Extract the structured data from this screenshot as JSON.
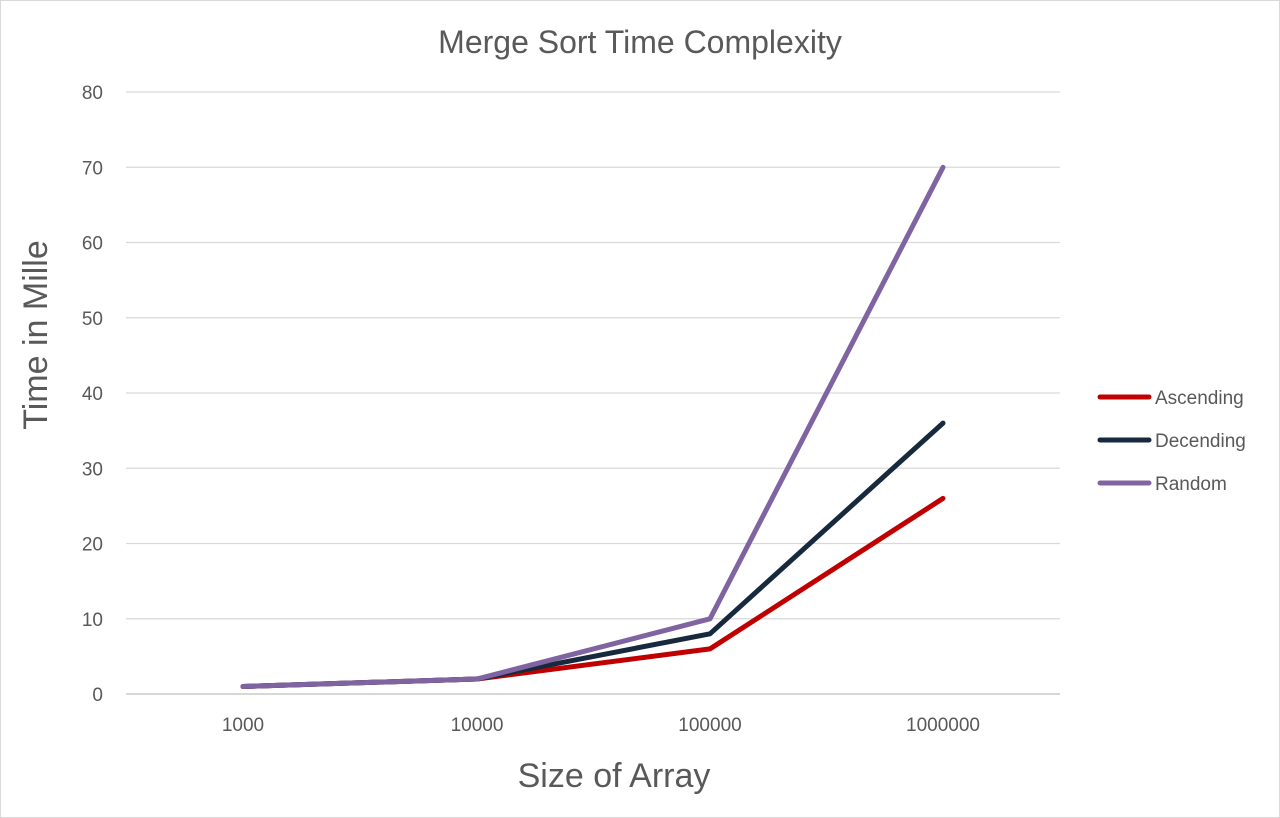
{
  "chart_data": {
    "type": "line",
    "title": "Merge Sort Time Complexity",
    "xlabel": "Size of Array",
    "ylabel": "Time in Mille",
    "categories": [
      "1000",
      "10000",
      "100000",
      "1000000"
    ],
    "ylim": [
      0,
      80
    ],
    "yticks": [
      0,
      10,
      20,
      30,
      40,
      50,
      60,
      70,
      80
    ],
    "grid": true,
    "legend_position": "right",
    "series": [
      {
        "name": "Ascending",
        "color": "#c00000",
        "values": [
          1,
          2,
          6,
          26
        ]
      },
      {
        "name": "Decending",
        "color": "#172a3d",
        "values": [
          1,
          2,
          8,
          36
        ]
      },
      {
        "name": "Random",
        "color": "#8064a2",
        "values": [
          1,
          2,
          10,
          70
        ]
      }
    ]
  }
}
